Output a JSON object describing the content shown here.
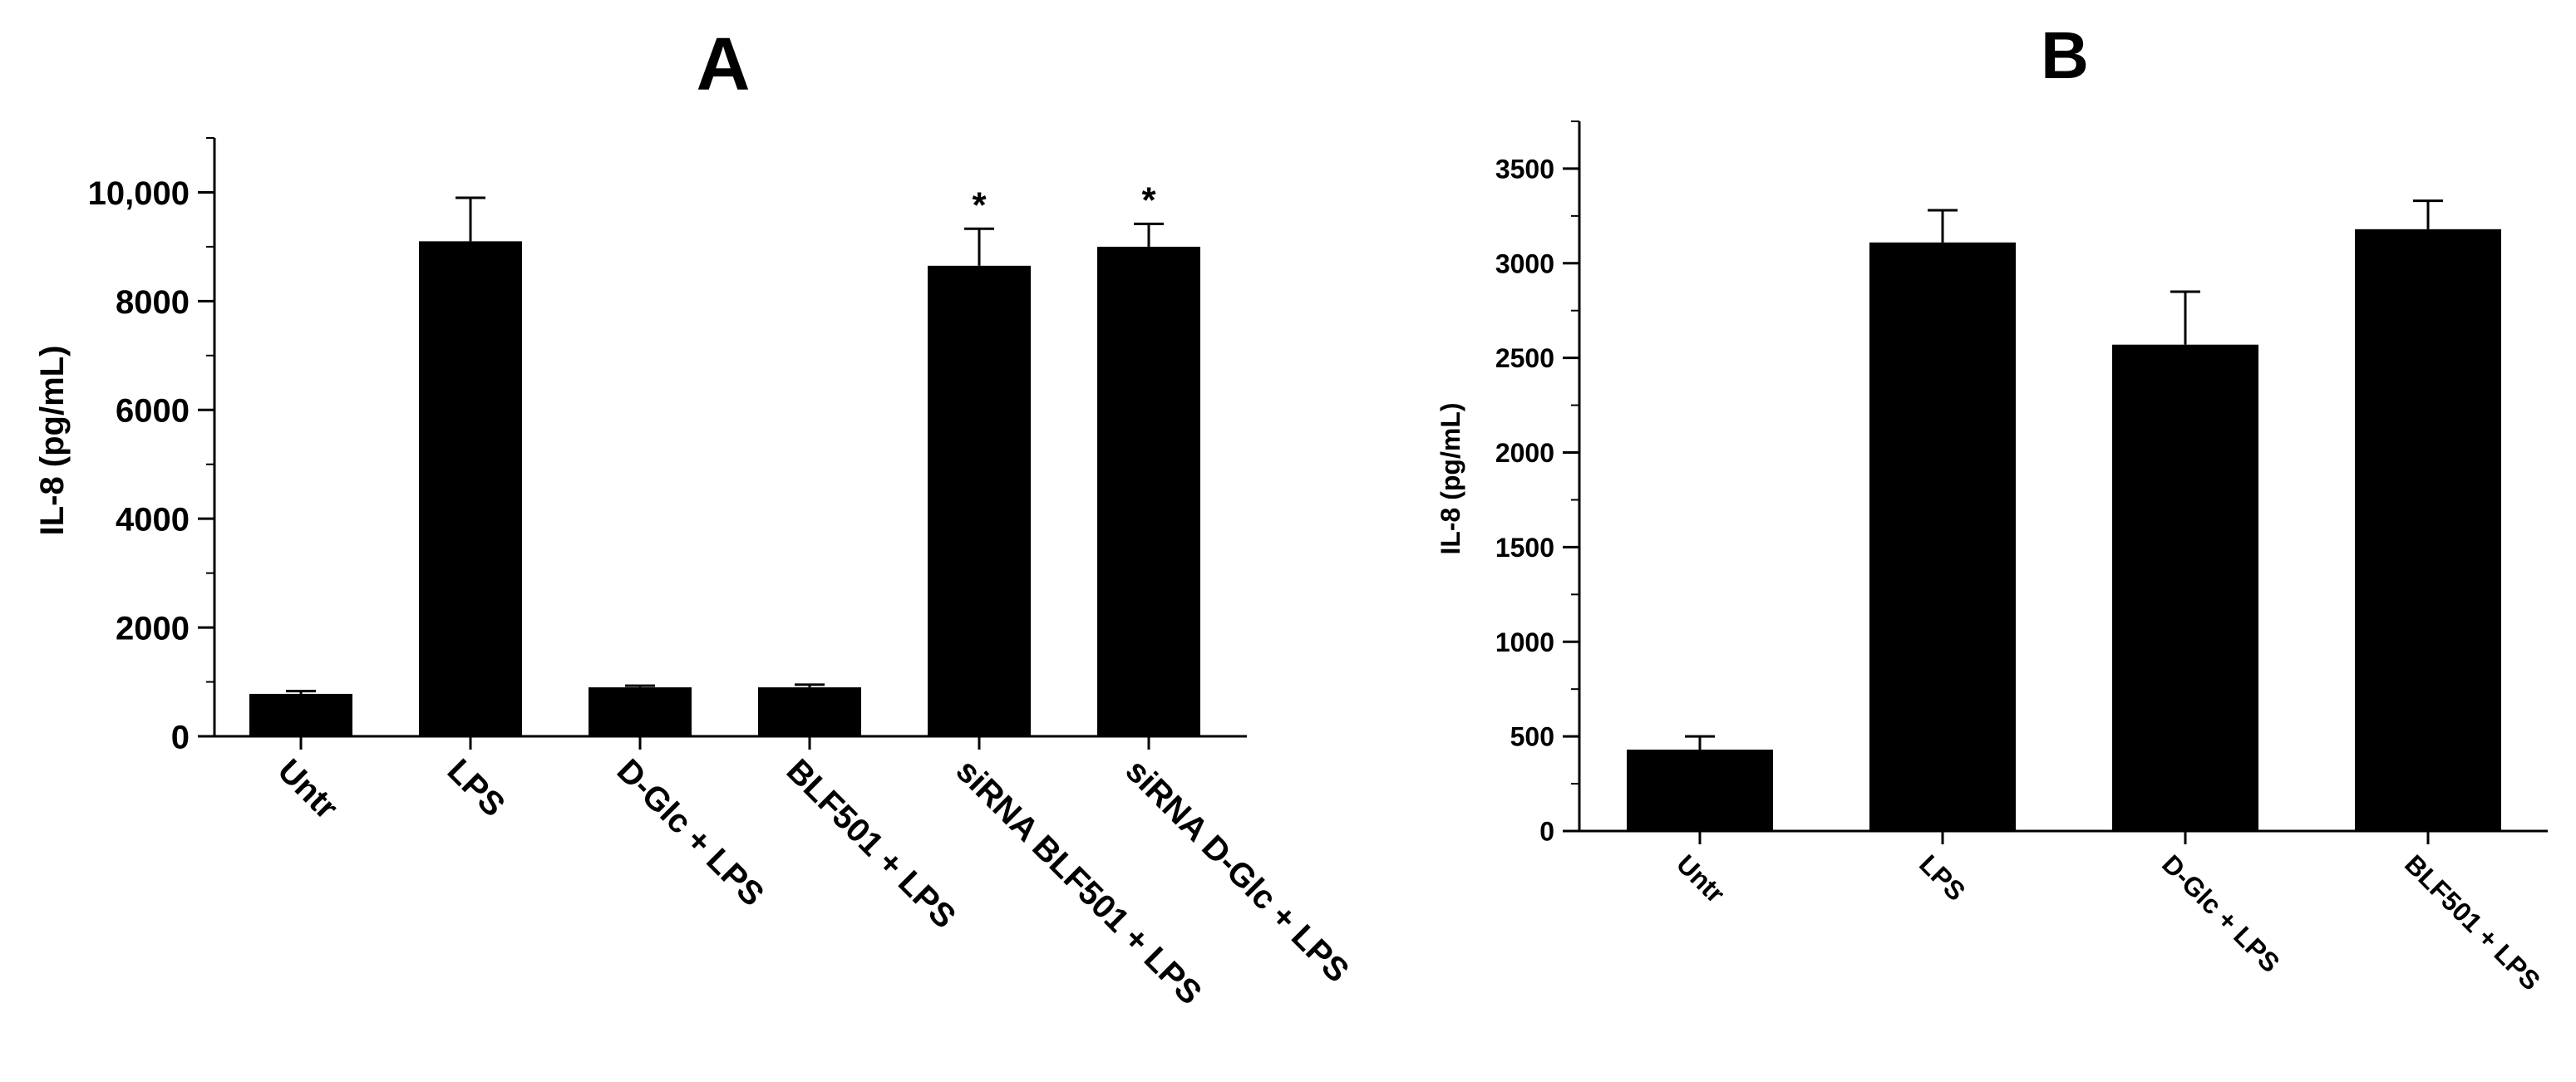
{
  "chart_data": [
    {
      "panel": "A",
      "type": "bar",
      "ylabel": "IL-8 (pg/mL)",
      "ylim": [
        0,
        11000
      ],
      "yticks": [
        {
          "value": 0,
          "label": "0"
        },
        {
          "value": 2000,
          "label": "2000"
        },
        {
          "value": 4000,
          "label": "4000"
        },
        {
          "value": 6000,
          "label": "6000"
        },
        {
          "value": 8000,
          "label": "8000"
        },
        {
          "value": 10000,
          "label": "10,000"
        }
      ],
      "categories": [
        "Untr",
        "LPS",
        "D-Glc + LPS",
        "BLF501 + LPS",
        "siRNA BLF501 + LPS",
        "siRNA D-Glc + LPS"
      ],
      "values": [
        780,
        9100,
        900,
        900,
        8650,
        9000
      ],
      "errors": [
        50,
        800,
        30,
        50,
        680,
        420
      ],
      "annotations": [
        "",
        "",
        "",
        "",
        "*",
        "*"
      ],
      "bar_color": "#000000",
      "grid": false
    },
    {
      "panel": "B",
      "type": "bar",
      "ylabel": "IL-8 (pg/mL)",
      "ylim": [
        0,
        3750
      ],
      "yticks": [
        {
          "value": 0,
          "label": "0"
        },
        {
          "value": 500,
          "label": "500"
        },
        {
          "value": 1000,
          "label": "1000"
        },
        {
          "value": 1500,
          "label": "1500"
        },
        {
          "value": 2000,
          "label": "2000"
        },
        {
          "value": 2500,
          "label": "2500"
        },
        {
          "value": 3000,
          "label": "3000"
        },
        {
          "value": 3500,
          "label": "3500"
        }
      ],
      "categories": [
        "Untr",
        "LPS",
        "D-Glc + LPS",
        "BLF501 + LPS"
      ],
      "values": [
        430,
        3110,
        2570,
        3180
      ],
      "errors": [
        70,
        170,
        280,
        150
      ],
      "annotations": [
        "",
        "",
        "",
        ""
      ],
      "bar_color": "#000000",
      "grid": false
    }
  ]
}
